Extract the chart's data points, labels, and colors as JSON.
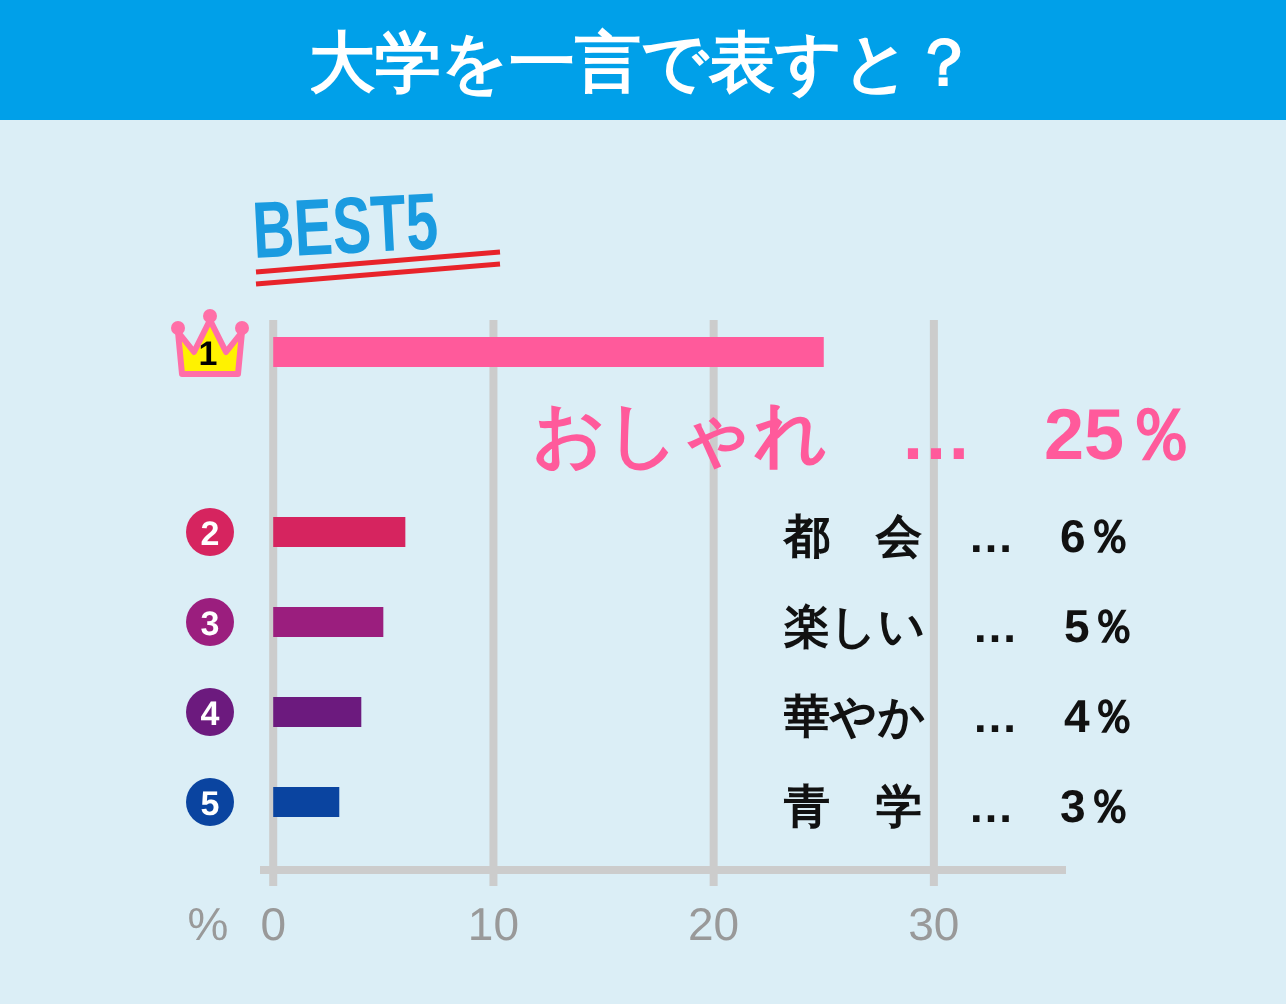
{
  "chart_data": {
    "type": "bar",
    "orientation": "horizontal",
    "title": "大学を一言で表すと？",
    "subtitle": "BEST5",
    "xlabel": "%",
    "categories": [
      "1",
      null,
      "2",
      "3",
      "4",
      "5"
    ],
    "values": [
      25,
      null,
      6,
      5,
      4,
      3
    ],
    "colors": [
      "#ff5a9b",
      null,
      "#d6245f",
      "#9b1e7e",
      "#6c1a7e",
      "#0a44a0"
    ],
    "annotations": [
      "おしゃれ　…　25％",
      "都　会　…　6％",
      "楽しい　…　5％",
      "華やか　…　4％",
      "青　学　…　3％"
    ],
    "xlim": [
      -0.6,
      36
    ],
    "xticks": [
      0,
      10,
      20,
      30
    ],
    "grid": "x"
  }
}
